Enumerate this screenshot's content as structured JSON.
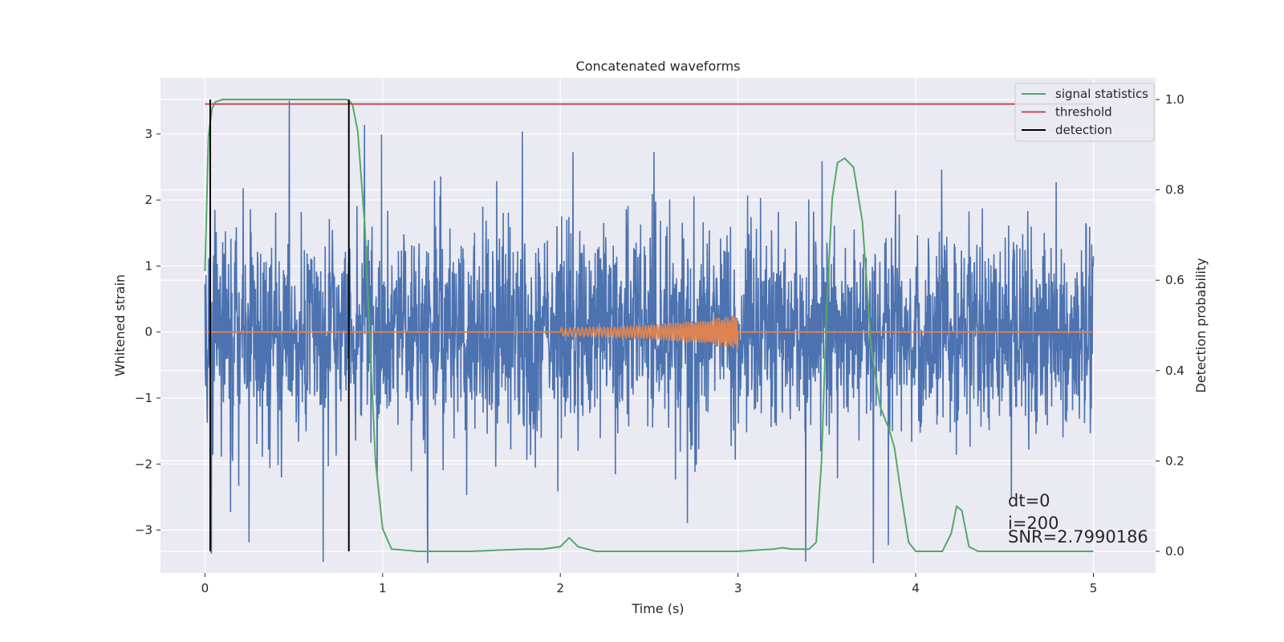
{
  "chart_data": {
    "type": "line",
    "title": "Concatenated waveforms",
    "xlabel": "Time (s)",
    "ylabel": "Whitened strain",
    "y2label": "Detection probability",
    "xlim": [
      -0.25,
      5.35
    ],
    "ylim": [
      -3.65,
      3.85
    ],
    "y2lim": [
      -0.048,
      1.048
    ],
    "xticks": [
      0,
      1,
      2,
      3,
      4,
      5
    ],
    "xtick_labels": [
      "0",
      "1",
      "2",
      "3",
      "4",
      "5"
    ],
    "yticks": [
      -3,
      -2,
      -1,
      0,
      1,
      2,
      3
    ],
    "ytick_labels": [
      "−3",
      "−2",
      "−1",
      "0",
      "1",
      "2",
      "3"
    ],
    "y2ticks": [
      0.0,
      0.2,
      0.4,
      0.6,
      0.8,
      1.0
    ],
    "y2tick_labels": [
      "0.0",
      "0.2",
      "0.4",
      "0.6",
      "0.8",
      "1.0"
    ],
    "grid": true,
    "legend_position": "top-right",
    "colors": {
      "background": "#eaeaf2",
      "grid": "#ffffff",
      "strain": "#4c72b0",
      "injection": "#dd8452",
      "signal_statistics": "#55a868",
      "threshold": "#c44e52",
      "detection": "#000000"
    },
    "series": [
      {
        "name": "",
        "axis": "left",
        "description_values": "whitened strain noise, roughly ±1 band with peaks to about ±3.5",
        "x_range": [
          0,
          5
        ],
        "typical_amplitude": 1.0,
        "peak_amplitude": 3.5
      },
      {
        "name": "",
        "axis": "left",
        "x_range": [
          0,
          5
        ],
        "chirp_start": 2.0,
        "chirp_end": 3.0,
        "chirp_amplitude_start": 0.06,
        "chirp_amplitude_end": 0.26
      },
      {
        "name": "signal statistics",
        "axis": "right",
        "x": [
          0,
          0.02,
          0.04,
          0.06,
          0.1,
          0.2,
          0.4,
          0.6,
          0.75,
          0.8,
          0.83,
          0.86,
          0.9,
          0.93,
          0.96,
          1.0,
          1.05,
          1.2,
          1.5,
          1.8,
          1.9,
          2.0,
          2.05,
          2.1,
          2.2,
          2.5,
          3.0,
          3.2,
          3.25,
          3.3,
          3.4,
          3.44,
          3.47,
          3.5,
          3.53,
          3.56,
          3.6,
          3.65,
          3.7,
          3.75,
          3.8,
          3.85,
          3.88,
          3.92,
          3.96,
          4.0,
          4.15,
          4.2,
          4.23,
          4.26,
          4.3,
          4.35,
          4.6,
          5.0
        ],
        "y": [
          0.62,
          0.92,
          0.98,
          0.995,
          1.0,
          1.0,
          1.0,
          1.0,
          1.0,
          1.0,
          0.99,
          0.93,
          0.72,
          0.45,
          0.2,
          0.05,
          0.005,
          0.0,
          0.0,
          0.005,
          0.005,
          0.01,
          0.03,
          0.01,
          0.0,
          0.0,
          0.0,
          0.005,
          0.008,
          0.005,
          0.005,
          0.02,
          0.2,
          0.55,
          0.78,
          0.86,
          0.87,
          0.85,
          0.73,
          0.45,
          0.32,
          0.27,
          0.23,
          0.12,
          0.02,
          0.0,
          0.0,
          0.04,
          0.1,
          0.09,
          0.01,
          0.0,
          0.0,
          0.0
        ]
      },
      {
        "name": "threshold",
        "axis": "right",
        "x": [
          0,
          5
        ],
        "y": [
          0.99,
          0.99
        ]
      },
      {
        "name": "detection",
        "axis": "right",
        "detection_times": [
          0.03,
          0.81
        ],
        "y_range": [
          0,
          1.0
        ]
      }
    ],
    "annotations": [
      "dt=0",
      "i=200",
      "SNR=2.7990186"
    ]
  }
}
